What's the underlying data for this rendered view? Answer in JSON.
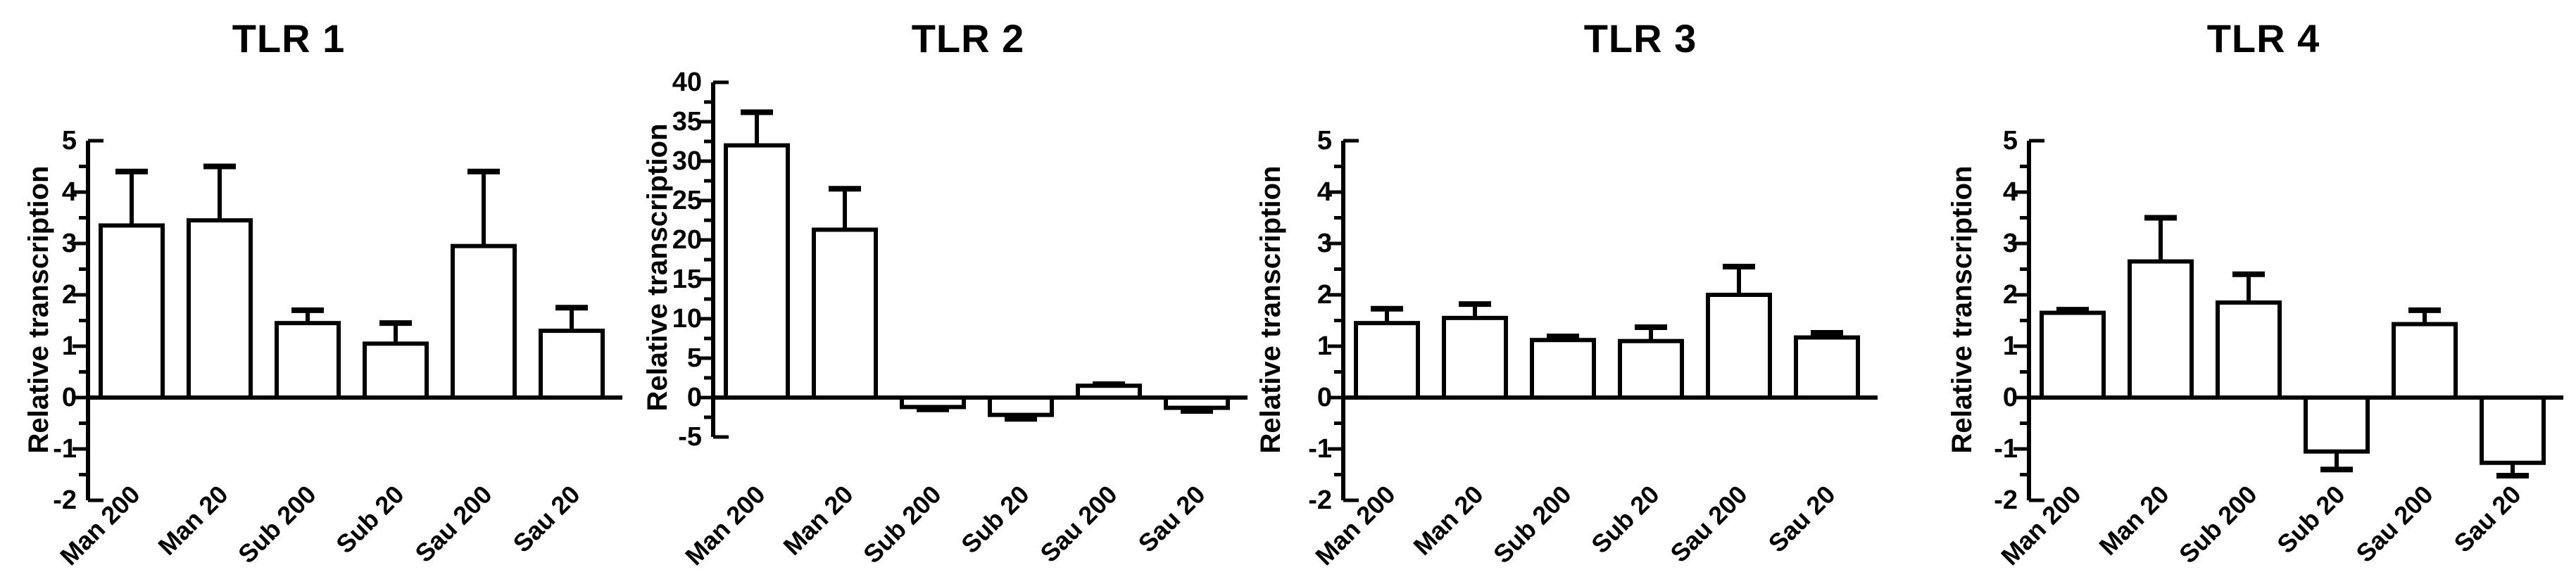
{
  "figure": {
    "background_color": "#ffffff",
    "ink_color": "#000000",
    "bar_fill_color": "#ffffff",
    "description": "Four-panel bar chart figure of TLR gene relative transcription with upper/lower SD error bars"
  },
  "chart_data": [
    {
      "type": "bar",
      "title": "TLR 1",
      "ylabel": "Relative transcription",
      "xlabel": "",
      "categories": [
        "Man 200",
        "Man 20",
        "Sub 200",
        "Sub 20",
        "Sau 200",
        "Sau 20"
      ],
      "values": [
        3.35,
        3.45,
        1.45,
        1.05,
        2.95,
        1.3
      ],
      "errors": [
        1.05,
        1.05,
        0.25,
        0.4,
        1.45,
        0.45
      ],
      "error_direction": "away-from-zero",
      "ylim": [
        -2,
        5
      ],
      "ytick_step": 1,
      "minor_tick_step": 0.5,
      "ytick_labels": [
        "5",
        "4",
        "3",
        "2",
        "1",
        "0",
        "-1",
        "-2"
      ],
      "grid": false,
      "legend": null
    },
    {
      "type": "bar",
      "title": "TLR 2",
      "ylabel": "Relative transcription",
      "xlabel": "",
      "categories": [
        "Man 200",
        "Man 20",
        "Sub 200",
        "Sub 20",
        "Sau 200",
        "Sau 20"
      ],
      "values": [
        32.0,
        21.3,
        -1.2,
        -2.2,
        1.5,
        -1.3
      ],
      "errors": [
        4.2,
        5.2,
        0.3,
        0.5,
        0.2,
        0.4
      ],
      "error_direction": "away-from-zero",
      "ylim": [
        -5,
        40
      ],
      "ytick_step": 5,
      "minor_tick_step": 2.5,
      "ytick_labels": [
        "40",
        "35",
        "30",
        "25",
        "20",
        "15",
        "10",
        "5",
        "0",
        "-5"
      ],
      "grid": false,
      "legend": null
    },
    {
      "type": "bar",
      "title": "TLR 3",
      "ylabel": "Relative transcription",
      "xlabel": "",
      "categories": [
        "Man 200",
        "Man 20",
        "Sub 200",
        "Sub 20",
        "Sau 200",
        "Sau 20"
      ],
      "values": [
        1.45,
        1.55,
        1.12,
        1.1,
        2.0,
        1.17
      ],
      "errors": [
        0.28,
        0.27,
        0.07,
        0.27,
        0.55,
        0.09
      ],
      "error_direction": "away-from-zero",
      "ylim": [
        -2,
        5
      ],
      "ytick_step": 1,
      "minor_tick_step": 0.5,
      "ytick_labels": [
        "5",
        "4",
        "3",
        "2",
        "1",
        "0",
        "-1",
        "-2"
      ],
      "grid": false,
      "legend": null
    },
    {
      "type": "bar",
      "title": "TLR 4",
      "ylabel": "Relative transcription",
      "xlabel": "",
      "categories": [
        "Man 200",
        "Man 20",
        "Sub 200",
        "Sub 20",
        "Sau 200",
        "Sau 20"
      ],
      "values": [
        1.65,
        2.65,
        1.85,
        -1.05,
        1.43,
        -1.27
      ],
      "errors": [
        0.06,
        0.85,
        0.55,
        0.35,
        0.27,
        0.25
      ],
      "error_direction": "away-from-zero",
      "ylim": [
        -2,
        5
      ],
      "ytick_step": 1,
      "minor_tick_step": 0.5,
      "ytick_labels": [
        "5",
        "4",
        "3",
        "2",
        "1",
        "0",
        "-1",
        "-2"
      ],
      "grid": false,
      "legend": null
    }
  ]
}
